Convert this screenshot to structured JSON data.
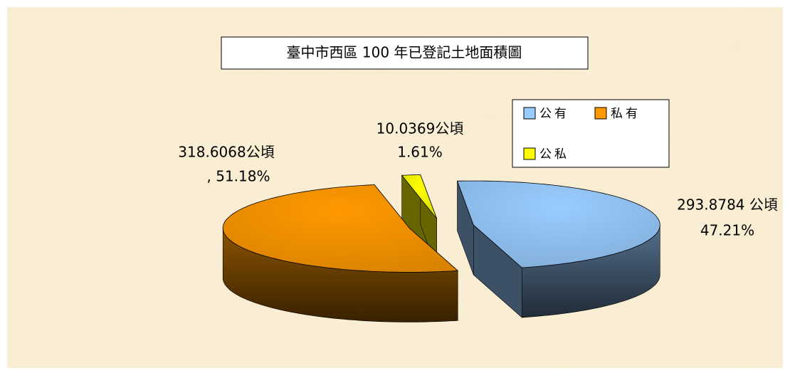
{
  "chart_data": {
    "type": "pie3d",
    "title": "臺中市西區 100 年已登記土地面積圖",
    "categories": [
      "公有",
      "私有",
      "公私"
    ],
    "values": [
      293.8784,
      318.6068,
      10.0369
    ],
    "value_labels": [
      [
        "293.8784 公頃",
        "47.21%"
      ],
      [
        "318.6068公頃",
        ", 51.18%"
      ],
      [
        "10.0369公頃",
        "1.61%"
      ]
    ],
    "colors": [
      "#99ccff",
      "#ff9900",
      "#ffff00"
    ],
    "legend": "top-right"
  }
}
